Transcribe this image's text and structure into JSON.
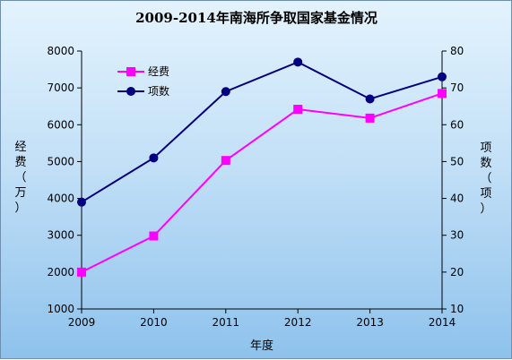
{
  "chart_data": {
    "type": "line",
    "title": "2009-2014年南海所争取国家基金情况",
    "xlabel": "年度",
    "ylabel_left": "经费（万）",
    "ylabel_right": "项数（项）",
    "categories": [
      "2009",
      "2010",
      "2011",
      "2012",
      "2013",
      "2014"
    ],
    "y_left": {
      "min": 1000,
      "max": 8000,
      "ticks": [
        "1000",
        "2000",
        "3000",
        "4000",
        "5000",
        "6000",
        "7000",
        "8000"
      ]
    },
    "y_right": {
      "min": 10,
      "max": 80,
      "ticks": [
        "10",
        "20",
        "30",
        "40",
        "50",
        "60",
        "70",
        "80"
      ]
    },
    "series": [
      {
        "name": "经费",
        "axis": "left",
        "color": "#ff00ff",
        "marker": "square",
        "values": [
          2000,
          2980,
          5030,
          6420,
          6180,
          6850
        ]
      },
      {
        "name": "项数",
        "axis": "right",
        "color": "#000080",
        "marker": "circle",
        "values": [
          39,
          51,
          69,
          77,
          67,
          73
        ]
      }
    ],
    "grid": false,
    "legend_position": "top-left"
  }
}
